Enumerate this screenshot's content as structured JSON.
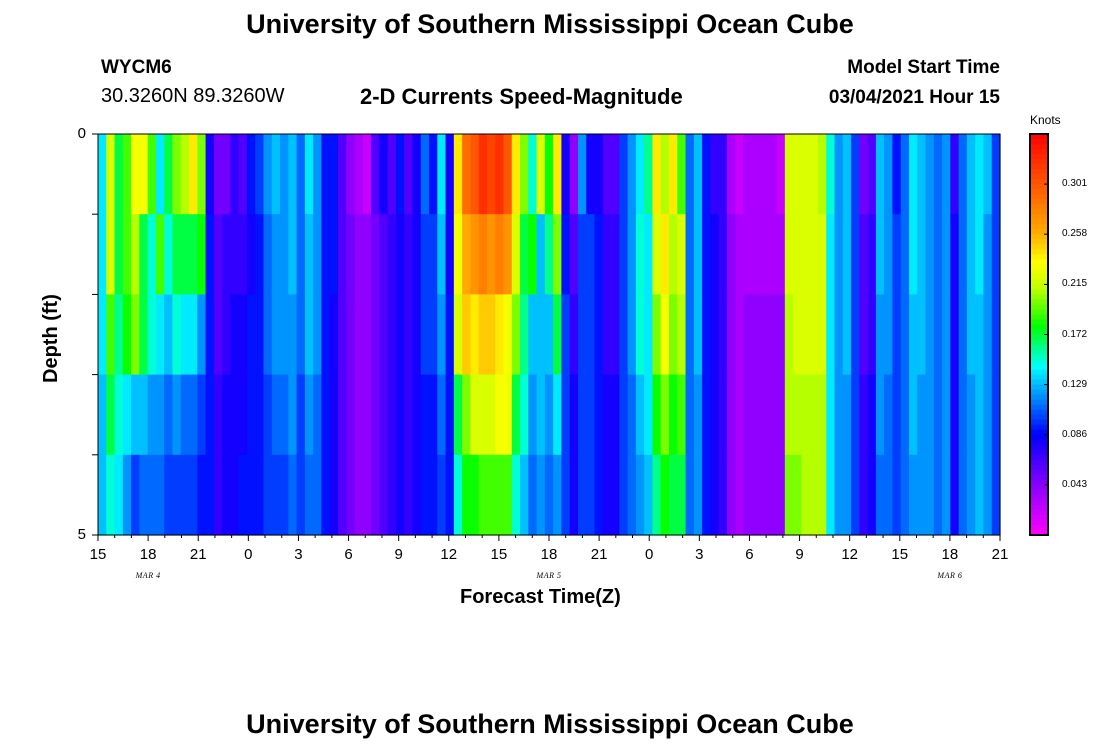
{
  "page": {
    "title_top": "University of Southern Mississippi Ocean Cube",
    "title_bottom": "University of Southern Mississippi Ocean Cube",
    "station_id": "WYCM6",
    "station_coords": "30.3260N 89.3260W",
    "chart_title": "2-D Currents Speed-Magnitude",
    "model_start_label": "Model Start Time",
    "model_start_value": "03/04/2021 Hour 15"
  },
  "chart_data": {
    "type": "heatmap",
    "title": "2-D Currents Speed-Magnitude",
    "xlabel": "Forecast Time(Z)",
    "ylabel": "Depth (ft)",
    "x_tick_labels": [
      "15",
      "18",
      "21",
      "0",
      "3",
      "6",
      "9",
      "12",
      "15",
      "18",
      "21",
      "0",
      "3",
      "6",
      "9",
      "12",
      "15",
      "18",
      "21"
    ],
    "x_range_hours": [
      0,
      54
    ],
    "date_labels": [
      "MAR 4",
      "MAR 5",
      "MAR 6"
    ],
    "y_tick_labels": [
      "0",
      "5"
    ],
    "y_range": [
      0,
      5
    ],
    "colorbar": {
      "label": "Knots",
      "ticks": [
        "0.301",
        "0.258",
        "0.215",
        "0.172",
        "0.129",
        "0.086",
        "0.043"
      ],
      "range": [
        0,
        0.344
      ]
    },
    "columns_per_hour": 2,
    "depth_rows": 5,
    "values_by_depth_row": [
      [
        0.14,
        0.22,
        0.17,
        0.19,
        0.23,
        0.23,
        0.19,
        0.14,
        0.17,
        0.2,
        0.21,
        0.24,
        0.2,
        0.08,
        0.05,
        0.05,
        0.07,
        0.06,
        0.09,
        0.1,
        0.12,
        0.13,
        0.12,
        0.13,
        0.11,
        0.14,
        0.12,
        0.09,
        0.09,
        0.06,
        0.04,
        0.03,
        0.02,
        0.06,
        0.08,
        0.06,
        0.09,
        0.06,
        0.08,
        0.11,
        0.09,
        0.14,
        0.08,
        0.24,
        0.29,
        0.3,
        0.32,
        0.31,
        0.32,
        0.3,
        0.24,
        0.2,
        0.15,
        0.22,
        0.18,
        0.24,
        0.08,
        0.04,
        0.12,
        0.08,
        0.08,
        0.06,
        0.06,
        0.1,
        0.12,
        0.14,
        0.16,
        0.24,
        0.21,
        0.24,
        0.19,
        0.11,
        0.13,
        0.09,
        0.07,
        0.07,
        0.03,
        0.02,
        0.03,
        0.03,
        0.03,
        0.03,
        0.02,
        0.22,
        0.22,
        0.22,
        0.22,
        0.21,
        0.15,
        0.12,
        0.13,
        0.1,
        0.05,
        0.06,
        0.13,
        0.12,
        0.09,
        0.11,
        0.14,
        0.13,
        0.12,
        0.11,
        0.12,
        0.07,
        0.11,
        0.13,
        0.14,
        0.13,
        0.1
      ],
      [
        0.14,
        0.22,
        0.17,
        0.19,
        0.21,
        0.17,
        0.15,
        0.19,
        0.15,
        0.17,
        0.17,
        0.17,
        0.18,
        0.09,
        0.06,
        0.07,
        0.07,
        0.07,
        0.08,
        0.09,
        0.11,
        0.12,
        0.12,
        0.13,
        0.11,
        0.13,
        0.12,
        0.09,
        0.09,
        0.06,
        0.05,
        0.04,
        0.04,
        0.05,
        0.06,
        0.07,
        0.08,
        0.07,
        0.08,
        0.1,
        0.1,
        0.13,
        0.08,
        0.23,
        0.26,
        0.27,
        0.28,
        0.27,
        0.28,
        0.27,
        0.22,
        0.17,
        0.18,
        0.13,
        0.16,
        0.2,
        0.09,
        0.06,
        0.1,
        0.1,
        0.09,
        0.07,
        0.07,
        0.1,
        0.12,
        0.15,
        0.14,
        0.22,
        0.24,
        0.21,
        0.22,
        0.11,
        0.13,
        0.09,
        0.08,
        0.07,
        0.04,
        0.03,
        0.03,
        0.03,
        0.03,
        0.03,
        0.03,
        0.22,
        0.22,
        0.22,
        0.22,
        0.22,
        0.14,
        0.12,
        0.13,
        0.1,
        0.06,
        0.07,
        0.13,
        0.12,
        0.1,
        0.11,
        0.14,
        0.13,
        0.12,
        0.11,
        0.12,
        0.08,
        0.11,
        0.13,
        0.14,
        0.12,
        0.1
      ],
      [
        0.14,
        0.19,
        0.16,
        0.18,
        0.2,
        0.17,
        0.15,
        0.14,
        0.13,
        0.15,
        0.14,
        0.14,
        0.12,
        0.09,
        0.06,
        0.07,
        0.08,
        0.08,
        0.09,
        0.09,
        0.11,
        0.12,
        0.12,
        0.12,
        0.11,
        0.13,
        0.12,
        0.09,
        0.08,
        0.06,
        0.05,
        0.04,
        0.04,
        0.05,
        0.06,
        0.07,
        0.08,
        0.07,
        0.08,
        0.1,
        0.1,
        0.12,
        0.09,
        0.22,
        0.25,
        0.24,
        0.25,
        0.25,
        0.24,
        0.23,
        0.2,
        0.16,
        0.13,
        0.13,
        0.13,
        0.17,
        0.1,
        0.07,
        0.1,
        0.1,
        0.09,
        0.07,
        0.07,
        0.1,
        0.12,
        0.15,
        0.14,
        0.2,
        0.23,
        0.2,
        0.21,
        0.11,
        0.13,
        0.09,
        0.08,
        0.07,
        0.04,
        0.03,
        0.04,
        0.04,
        0.04,
        0.04,
        0.04,
        0.21,
        0.22,
        0.22,
        0.22,
        0.22,
        0.14,
        0.12,
        0.13,
        0.1,
        0.06,
        0.07,
        0.12,
        0.12,
        0.1,
        0.11,
        0.13,
        0.13,
        0.12,
        0.11,
        0.12,
        0.08,
        0.11,
        0.13,
        0.13,
        0.12,
        0.1
      ],
      [
        0.13,
        0.17,
        0.15,
        0.14,
        0.13,
        0.13,
        0.12,
        0.12,
        0.11,
        0.12,
        0.11,
        0.11,
        0.1,
        0.09,
        0.07,
        0.08,
        0.08,
        0.08,
        0.09,
        0.09,
        0.1,
        0.11,
        0.11,
        0.12,
        0.1,
        0.12,
        0.11,
        0.09,
        0.08,
        0.06,
        0.05,
        0.04,
        0.04,
        0.05,
        0.06,
        0.07,
        0.08,
        0.07,
        0.08,
        0.09,
        0.09,
        0.11,
        0.09,
        0.17,
        0.2,
        0.22,
        0.22,
        0.22,
        0.23,
        0.23,
        0.17,
        0.15,
        0.12,
        0.13,
        0.12,
        0.14,
        0.1,
        0.08,
        0.1,
        0.1,
        0.09,
        0.08,
        0.08,
        0.1,
        0.11,
        0.13,
        0.14,
        0.18,
        0.2,
        0.18,
        0.19,
        0.11,
        0.12,
        0.09,
        0.08,
        0.07,
        0.04,
        0.03,
        0.04,
        0.04,
        0.04,
        0.04,
        0.04,
        0.21,
        0.21,
        0.21,
        0.21,
        0.21,
        0.14,
        0.12,
        0.12,
        0.1,
        0.07,
        0.08,
        0.12,
        0.11,
        0.1,
        0.11,
        0.13,
        0.12,
        0.12,
        0.11,
        0.12,
        0.08,
        0.11,
        0.12,
        0.13,
        0.12,
        0.1
      ],
      [
        0.13,
        0.15,
        0.14,
        0.12,
        0.1,
        0.11,
        0.11,
        0.11,
        0.1,
        0.1,
        0.1,
        0.1,
        0.09,
        0.09,
        0.07,
        0.08,
        0.08,
        0.09,
        0.09,
        0.09,
        0.1,
        0.1,
        0.1,
        0.11,
        0.1,
        0.11,
        0.11,
        0.09,
        0.08,
        0.06,
        0.05,
        0.04,
        0.04,
        0.05,
        0.06,
        0.07,
        0.08,
        0.07,
        0.08,
        0.09,
        0.09,
        0.1,
        0.09,
        0.15,
        0.18,
        0.18,
        0.19,
        0.19,
        0.19,
        0.19,
        0.15,
        0.13,
        0.11,
        0.12,
        0.11,
        0.12,
        0.1,
        0.08,
        0.1,
        0.1,
        0.09,
        0.08,
        0.08,
        0.1,
        0.11,
        0.12,
        0.13,
        0.16,
        0.18,
        0.17,
        0.17,
        0.11,
        0.12,
        0.09,
        0.08,
        0.07,
        0.04,
        0.03,
        0.04,
        0.04,
        0.04,
        0.04,
        0.04,
        0.2,
        0.2,
        0.21,
        0.21,
        0.21,
        0.14,
        0.12,
        0.12,
        0.1,
        0.07,
        0.08,
        0.11,
        0.11,
        0.1,
        0.11,
        0.12,
        0.12,
        0.12,
        0.11,
        0.12,
        0.08,
        0.11,
        0.12,
        0.13,
        0.12,
        0.1
      ]
    ]
  }
}
